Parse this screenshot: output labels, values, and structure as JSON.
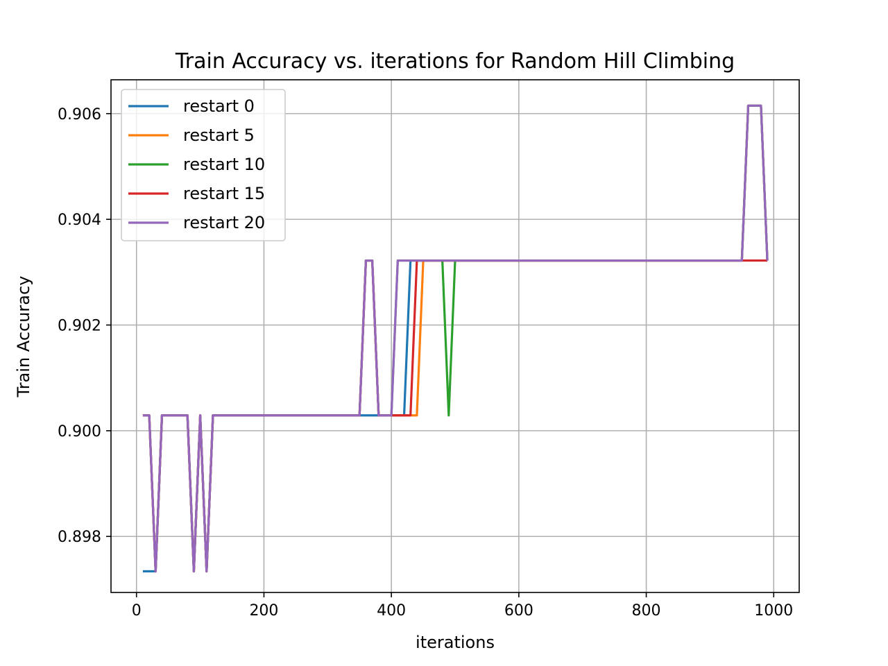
{
  "chart_data": {
    "type": "line",
    "title": "Train Accuracy vs. iterations for Random Hill Climbing",
    "xlabel": "iterations",
    "ylabel": "Train Accuracy",
    "xlim": [
      -40,
      1040
    ],
    "ylim": [
      0.89694,
      0.90664
    ],
    "xticks": [
      0,
      200,
      400,
      600,
      800,
      1000
    ],
    "yticks": [
      0.898,
      0.9,
      0.902,
      0.904,
      0.906
    ],
    "ytick_labels": [
      "0.898",
      "0.900",
      "0.902",
      "0.904",
      "0.906"
    ],
    "grid": true,
    "legend_position": "upper-left",
    "series": [
      {
        "name": "restart 0",
        "color": "#1f77b4",
        "points": [
          [
            10,
            0.89734
          ],
          [
            30,
            0.89734
          ],
          [
            40,
            0.90029
          ],
          [
            80,
            0.90029
          ],
          [
            90,
            0.89734
          ],
          [
            100,
            0.90029
          ],
          [
            110,
            0.89734
          ],
          [
            120,
            0.90029
          ],
          [
            350,
            0.90029
          ],
          [
            380,
            0.90029
          ],
          [
            420,
            0.90029
          ],
          [
            430,
            0.90322
          ],
          [
            950,
            0.90322
          ],
          [
            960,
            0.90615
          ],
          [
            980,
            0.90615
          ],
          [
            990,
            0.90322
          ]
        ]
      },
      {
        "name": "restart 5",
        "color": "#ff7f0e",
        "points": [
          [
            10,
            0.90029
          ],
          [
            20,
            0.90029
          ],
          [
            30,
            0.89734
          ],
          [
            40,
            0.90029
          ],
          [
            80,
            0.90029
          ],
          [
            90,
            0.89734
          ],
          [
            100,
            0.90029
          ],
          [
            110,
            0.89734
          ],
          [
            120,
            0.90029
          ],
          [
            350,
            0.90029
          ],
          [
            360,
            0.90322
          ],
          [
            370,
            0.90322
          ],
          [
            380,
            0.90029
          ],
          [
            440,
            0.90029
          ],
          [
            450,
            0.90322
          ],
          [
            950,
            0.90322
          ],
          [
            960,
            0.90615
          ],
          [
            980,
            0.90615
          ],
          [
            990,
            0.90322
          ]
        ]
      },
      {
        "name": "restart 10",
        "color": "#2ca02c",
        "points": [
          [
            10,
            0.90029
          ],
          [
            20,
            0.90029
          ],
          [
            30,
            0.89734
          ],
          [
            40,
            0.90029
          ],
          [
            80,
            0.90029
          ],
          [
            90,
            0.89734
          ],
          [
            100,
            0.90029
          ],
          [
            110,
            0.89734
          ],
          [
            120,
            0.90029
          ],
          [
            350,
            0.90029
          ],
          [
            360,
            0.90322
          ],
          [
            370,
            0.90322
          ],
          [
            380,
            0.90029
          ],
          [
            400,
            0.90029
          ],
          [
            410,
            0.90322
          ],
          [
            480,
            0.90322
          ],
          [
            490,
            0.90029
          ],
          [
            500,
            0.90322
          ],
          [
            950,
            0.90322
          ],
          [
            960,
            0.90615
          ],
          [
            980,
            0.90615
          ],
          [
            990,
            0.90322
          ]
        ]
      },
      {
        "name": "restart 15",
        "color": "#d62728",
        "points": [
          [
            10,
            0.90029
          ],
          [
            20,
            0.90029
          ],
          [
            30,
            0.89734
          ],
          [
            40,
            0.90029
          ],
          [
            80,
            0.90029
          ],
          [
            90,
            0.89734
          ],
          [
            100,
            0.90029
          ],
          [
            110,
            0.89734
          ],
          [
            120,
            0.90029
          ],
          [
            350,
            0.90029
          ],
          [
            360,
            0.90322
          ],
          [
            370,
            0.90322
          ],
          [
            380,
            0.90029
          ],
          [
            430,
            0.90029
          ],
          [
            440,
            0.90322
          ],
          [
            990,
            0.90322
          ]
        ]
      },
      {
        "name": "restart 20",
        "color": "#9467bd",
        "points": [
          [
            10,
            0.90029
          ],
          [
            20,
            0.90029
          ],
          [
            30,
            0.89734
          ],
          [
            40,
            0.90029
          ],
          [
            80,
            0.90029
          ],
          [
            90,
            0.89734
          ],
          [
            100,
            0.90029
          ],
          [
            110,
            0.89734
          ],
          [
            120,
            0.90029
          ],
          [
            350,
            0.90029
          ],
          [
            360,
            0.90322
          ],
          [
            370,
            0.90322
          ],
          [
            380,
            0.90029
          ],
          [
            400,
            0.90029
          ],
          [
            410,
            0.90322
          ],
          [
            950,
            0.90322
          ],
          [
            960,
            0.90615
          ],
          [
            980,
            0.90615
          ],
          [
            990,
            0.90322
          ]
        ]
      }
    ]
  }
}
